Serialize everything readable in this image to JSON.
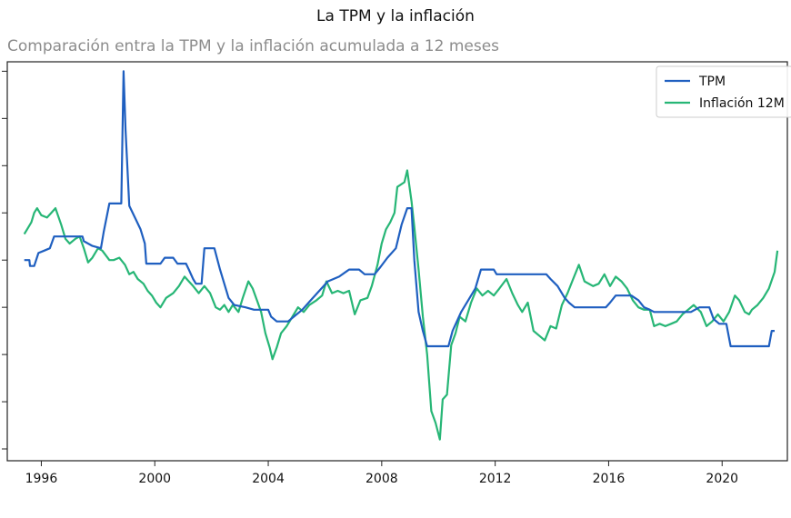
{
  "chart_data": {
    "type": "line",
    "title": "La TPM y la inflación",
    "subtitle": "Comparación entra la TPM y la inflación acumulada a 12 meses",
    "xlabel": "",
    "ylabel": "",
    "xlim": [
      1994.8,
      2022.3
    ],
    "ylim": [
      -2.5,
      14.4
    ],
    "x_ticks": [
      1996,
      2000,
      2004,
      2008,
      2012,
      2016,
      2020
    ],
    "y_ticks": [
      -2,
      0,
      2,
      4,
      6,
      8,
      10,
      12,
      14
    ],
    "grid": false,
    "legend_position": "top-right",
    "series": [
      {
        "name": "TPM",
        "color": "#1f5fc0",
        "points": [
          [
            1995.4,
            6.0
          ],
          [
            1995.58,
            6.0
          ],
          [
            1995.6,
            5.75
          ],
          [
            1995.75,
            5.75
          ],
          [
            1995.9,
            6.3
          ],
          [
            1996.1,
            6.4
          ],
          [
            1996.3,
            6.5
          ],
          [
            1996.45,
            7.0
          ],
          [
            1997.0,
            7.0
          ],
          [
            1997.45,
            7.0
          ],
          [
            1997.5,
            6.8
          ],
          [
            1997.8,
            6.6
          ],
          [
            1998.1,
            6.5
          ],
          [
            1998.2,
            7.2
          ],
          [
            1998.4,
            8.4
          ],
          [
            1998.82,
            8.4
          ],
          [
            1998.9,
            14.0
          ],
          [
            1998.97,
            11.5
          ],
          [
            1999.1,
            8.3
          ],
          [
            1999.3,
            7.8
          ],
          [
            1999.5,
            7.3
          ],
          [
            1999.65,
            6.7
          ],
          [
            1999.7,
            5.85
          ],
          [
            2000.2,
            5.85
          ],
          [
            2000.35,
            6.1
          ],
          [
            2000.65,
            6.1
          ],
          [
            2000.8,
            5.85
          ],
          [
            2001.1,
            5.85
          ],
          [
            2001.2,
            5.6
          ],
          [
            2001.35,
            5.2
          ],
          [
            2001.45,
            5.0
          ],
          [
            2001.65,
            5.0
          ],
          [
            2001.75,
            6.5
          ],
          [
            2002.1,
            6.5
          ],
          [
            2002.3,
            5.6
          ],
          [
            2002.45,
            5.0
          ],
          [
            2002.6,
            4.4
          ],
          [
            2002.8,
            4.1
          ],
          [
            2003.2,
            4.0
          ],
          [
            2003.5,
            3.9
          ],
          [
            2004.0,
            3.9
          ],
          [
            2004.1,
            3.6
          ],
          [
            2004.3,
            3.4
          ],
          [
            2004.7,
            3.4
          ],
          [
            2004.9,
            3.6
          ],
          [
            2005.2,
            3.9
          ],
          [
            2005.5,
            4.3
          ],
          [
            2005.8,
            4.7
          ],
          [
            2006.1,
            5.1
          ],
          [
            2006.5,
            5.3
          ],
          [
            2006.85,
            5.6
          ],
          [
            2007.2,
            5.6
          ],
          [
            2007.4,
            5.4
          ],
          [
            2007.75,
            5.4
          ],
          [
            2007.95,
            5.7
          ],
          [
            2008.2,
            6.1
          ],
          [
            2008.5,
            6.5
          ],
          [
            2008.7,
            7.5
          ],
          [
            2008.9,
            8.2
          ],
          [
            2009.05,
            8.2
          ],
          [
            2009.15,
            6.0
          ],
          [
            2009.3,
            3.8
          ],
          [
            2009.45,
            3.0
          ],
          [
            2009.6,
            2.35
          ],
          [
            2010.1,
            2.35
          ],
          [
            2010.35,
            2.35
          ],
          [
            2010.5,
            3.0
          ],
          [
            2010.8,
            3.8
          ],
          [
            2011.05,
            4.3
          ],
          [
            2011.3,
            4.8
          ],
          [
            2011.5,
            5.6
          ],
          [
            2011.95,
            5.6
          ],
          [
            2012.05,
            5.4
          ],
          [
            2012.8,
            5.4
          ],
          [
            2013.5,
            5.4
          ],
          [
            2013.8,
            5.4
          ],
          [
            2013.95,
            5.2
          ],
          [
            2014.2,
            4.9
          ],
          [
            2014.45,
            4.4
          ],
          [
            2014.6,
            4.2
          ],
          [
            2014.8,
            4.0
          ],
          [
            2015.0,
            4.0
          ],
          [
            2015.4,
            4.0
          ],
          [
            2015.9,
            4.0
          ],
          [
            2016.05,
            4.2
          ],
          [
            2016.25,
            4.5
          ],
          [
            2016.5,
            4.5
          ],
          [
            2016.8,
            4.5
          ],
          [
            2017.05,
            4.3
          ],
          [
            2017.25,
            4.0
          ],
          [
            2017.45,
            3.9
          ],
          [
            2017.6,
            3.8
          ],
          [
            2018.0,
            3.8
          ],
          [
            2018.9,
            3.8
          ],
          [
            2019.2,
            4.0
          ],
          [
            2019.55,
            4.0
          ],
          [
            2019.7,
            3.5
          ],
          [
            2019.9,
            3.3
          ],
          [
            2020.15,
            3.3
          ],
          [
            2020.3,
            2.35
          ],
          [
            2020.7,
            2.35
          ],
          [
            2021.65,
            2.35
          ],
          [
            2021.75,
            3.0
          ],
          [
            2021.85,
            3.0
          ]
        ]
      },
      {
        "name": "Inflación 12M",
        "color": "#27b676",
        "points": [
          [
            1995.4,
            7.1
          ],
          [
            1995.5,
            7.3
          ],
          [
            1995.65,
            7.6
          ],
          [
            1995.75,
            8.0
          ],
          [
            1995.85,
            8.2
          ],
          [
            1996.0,
            7.9
          ],
          [
            1996.2,
            7.8
          ],
          [
            1996.35,
            8.0
          ],
          [
            1996.5,
            8.2
          ],
          [
            1996.7,
            7.5
          ],
          [
            1996.85,
            6.9
          ],
          [
            1997.0,
            6.7
          ],
          [
            1997.2,
            6.9
          ],
          [
            1997.35,
            7.0
          ],
          [
            1997.5,
            6.5
          ],
          [
            1997.65,
            5.9
          ],
          [
            1997.8,
            6.1
          ],
          [
            1998.0,
            6.5
          ],
          [
            1998.15,
            6.4
          ],
          [
            1998.4,
            6.0
          ],
          [
            1998.55,
            6.0
          ],
          [
            1998.75,
            6.1
          ],
          [
            1998.95,
            5.8
          ],
          [
            1999.1,
            5.4
          ],
          [
            1999.25,
            5.5
          ],
          [
            1999.4,
            5.2
          ],
          [
            1999.6,
            5.0
          ],
          [
            1999.75,
            4.7
          ],
          [
            1999.9,
            4.5
          ],
          [
            2000.05,
            4.2
          ],
          [
            2000.2,
            4.0
          ],
          [
            2000.4,
            4.4
          ],
          [
            2000.65,
            4.6
          ],
          [
            2000.85,
            4.9
          ],
          [
            2001.05,
            5.3
          ],
          [
            2001.2,
            5.1
          ],
          [
            2001.35,
            4.9
          ],
          [
            2001.55,
            4.6
          ],
          [
            2001.75,
            4.9
          ],
          [
            2001.95,
            4.6
          ],
          [
            2002.15,
            4.0
          ],
          [
            2002.3,
            3.9
          ],
          [
            2002.45,
            4.1
          ],
          [
            2002.6,
            3.8
          ],
          [
            2002.75,
            4.1
          ],
          [
            2002.95,
            3.8
          ],
          [
            2003.1,
            4.4
          ],
          [
            2003.3,
            5.1
          ],
          [
            2003.45,
            4.8
          ],
          [
            2003.6,
            4.3
          ],
          [
            2003.75,
            3.8
          ],
          [
            2003.9,
            2.9
          ],
          [
            2004.05,
            2.3
          ],
          [
            2004.15,
            1.8
          ],
          [
            2004.3,
            2.3
          ],
          [
            2004.45,
            2.9
          ],
          [
            2004.65,
            3.2
          ],
          [
            2004.85,
            3.6
          ],
          [
            2005.05,
            4.0
          ],
          [
            2005.25,
            3.8
          ],
          [
            2005.45,
            4.1
          ],
          [
            2005.7,
            4.3
          ],
          [
            2005.9,
            4.5
          ],
          [
            2006.05,
            5.1
          ],
          [
            2006.25,
            4.6
          ],
          [
            2006.45,
            4.7
          ],
          [
            2006.65,
            4.6
          ],
          [
            2006.85,
            4.7
          ],
          [
            2007.05,
            3.7
          ],
          [
            2007.25,
            4.3
          ],
          [
            2007.5,
            4.4
          ],
          [
            2007.65,
            4.9
          ],
          [
            2007.85,
            5.8
          ],
          [
            2008.0,
            6.7
          ],
          [
            2008.15,
            7.3
          ],
          [
            2008.3,
            7.6
          ],
          [
            2008.45,
            8.0
          ],
          [
            2008.55,
            9.1
          ],
          [
            2008.8,
            9.3
          ],
          [
            2008.9,
            9.8
          ],
          [
            2009.05,
            8.5
          ],
          [
            2009.15,
            7.4
          ],
          [
            2009.3,
            5.6
          ],
          [
            2009.45,
            3.6
          ],
          [
            2009.6,
            2.0
          ],
          [
            2009.75,
            -0.4
          ],
          [
            2009.9,
            -0.9
          ],
          [
            2010.05,
            -1.6
          ],
          [
            2010.15,
            0.1
          ],
          [
            2010.3,
            0.3
          ],
          [
            2010.45,
            2.4
          ],
          [
            2010.6,
            2.9
          ],
          [
            2010.75,
            3.6
          ],
          [
            2010.95,
            3.4
          ],
          [
            2011.15,
            4.2
          ],
          [
            2011.35,
            4.8
          ],
          [
            2011.55,
            4.5
          ],
          [
            2011.75,
            4.7
          ],
          [
            2011.95,
            4.5
          ],
          [
            2012.15,
            4.8
          ],
          [
            2012.4,
            5.2
          ],
          [
            2012.6,
            4.6
          ],
          [
            2012.8,
            4.1
          ],
          [
            2012.95,
            3.8
          ],
          [
            2013.15,
            4.2
          ],
          [
            2013.35,
            3.0
          ],
          [
            2013.55,
            2.8
          ],
          [
            2013.75,
            2.6
          ],
          [
            2013.95,
            3.2
          ],
          [
            2014.15,
            3.1
          ],
          [
            2014.35,
            4.1
          ],
          [
            2014.55,
            4.6
          ],
          [
            2014.75,
            5.2
          ],
          [
            2014.95,
            5.8
          ],
          [
            2015.15,
            5.1
          ],
          [
            2015.45,
            4.9
          ],
          [
            2015.65,
            5.0
          ],
          [
            2015.85,
            5.4
          ],
          [
            2016.05,
            4.9
          ],
          [
            2016.25,
            5.3
          ],
          [
            2016.45,
            5.1
          ],
          [
            2016.65,
            4.8
          ],
          [
            2016.85,
            4.3
          ],
          [
            2017.05,
            4.0
          ],
          [
            2017.25,
            3.9
          ],
          [
            2017.45,
            3.9
          ],
          [
            2017.6,
            3.2
          ],
          [
            2017.8,
            3.3
          ],
          [
            2018.0,
            3.2
          ],
          [
            2018.2,
            3.3
          ],
          [
            2018.4,
            3.4
          ],
          [
            2018.6,
            3.7
          ],
          [
            2018.8,
            3.9
          ],
          [
            2019.0,
            4.1
          ],
          [
            2019.25,
            3.8
          ],
          [
            2019.45,
            3.2
          ],
          [
            2019.65,
            3.4
          ],
          [
            2019.85,
            3.7
          ],
          [
            2020.05,
            3.4
          ],
          [
            2020.25,
            3.8
          ],
          [
            2020.45,
            4.5
          ],
          [
            2020.6,
            4.3
          ],
          [
            2020.8,
            3.8
          ],
          [
            2020.95,
            3.7
          ],
          [
            2021.05,
            3.9
          ],
          [
            2021.25,
            4.1
          ],
          [
            2021.45,
            4.4
          ],
          [
            2021.65,
            4.8
          ],
          [
            2021.85,
            5.5
          ],
          [
            2021.95,
            6.4
          ]
        ]
      }
    ]
  }
}
